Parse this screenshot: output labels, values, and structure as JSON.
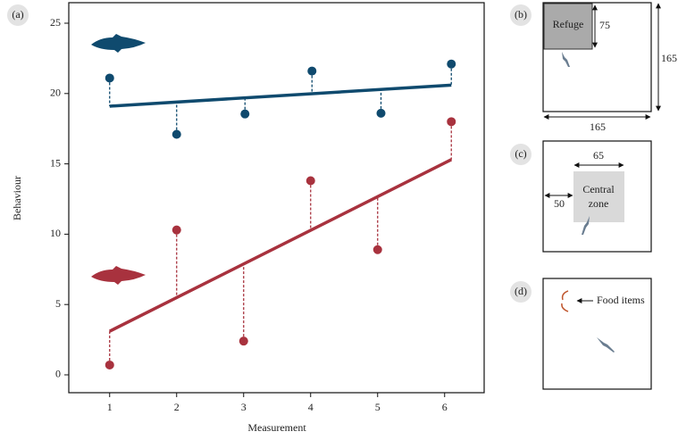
{
  "chart_data": {
    "type": "scatter",
    "panel_label": "(a)",
    "x_label": "Measurement",
    "y_label": "Behaviour",
    "xlim": [
      0.39,
      6.59
    ],
    "ylim": [
      -1.27,
      26.46
    ],
    "xticks": [
      1,
      2,
      3,
      4,
      5,
      6
    ],
    "yticks": [
      0,
      5,
      10,
      15,
      20,
      25
    ],
    "series": [
      {
        "color": "#0f4a6e",
        "x": [
          1,
          2,
          3.02,
          4.02,
          5.05,
          6.1
        ],
        "values": [
          21.1,
          17.1,
          18.55,
          21.6,
          18.6,
          22.1
        ],
        "fit": {
          "x": [
            1,
            6.1
          ],
          "values": [
            19.1,
            20.6
          ]
        }
      },
      {
        "color": "#a8323e",
        "x": [
          1,
          2,
          3,
          4,
          5,
          6.1
        ],
        "values": [
          0.7,
          10.3,
          2.4,
          13.8,
          8.9,
          18.0
        ],
        "fit": {
          "x": [
            1,
            6.1
          ],
          "values": [
            3.1,
            15.3
          ]
        }
      }
    ]
  },
  "panels": {
    "b": {
      "label": "(b)",
      "refuge": "Refuge",
      "refuge_size": "75",
      "height": "165",
      "width": "165"
    },
    "c": {
      "label": "(c)",
      "zone_line1": "Central",
      "zone_line2": "zone",
      "zone_size": "65",
      "offset": "50"
    },
    "d": {
      "label": "(d)",
      "food": "Food items"
    }
  }
}
